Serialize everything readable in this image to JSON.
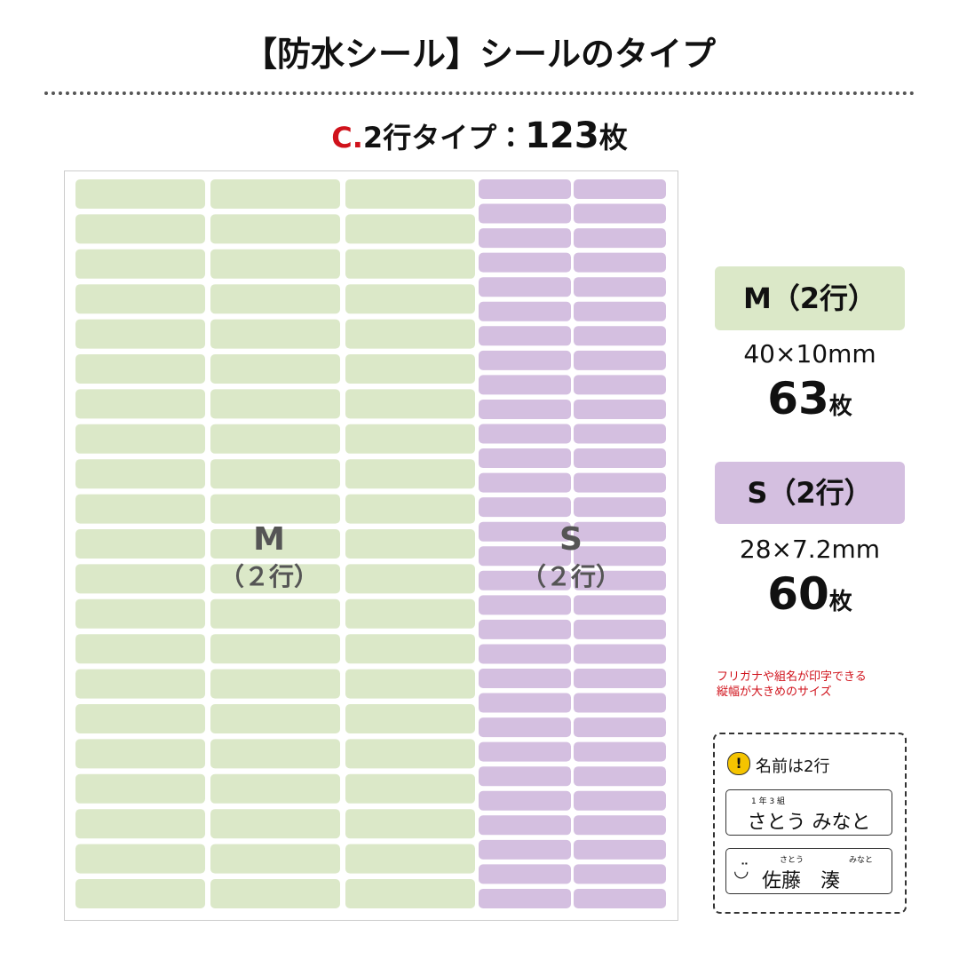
{
  "header": {
    "title": "【防水シール】シールのタイプ"
  },
  "subtitle": {
    "prefix": "C.",
    "type": "2行タイプ：",
    "count": "123",
    "unit": "枚"
  },
  "sheet": {
    "labels": [
      {
        "size": "M",
        "lines": "（２行）"
      },
      {
        "size": "S",
        "lines": "（２行）"
      }
    ]
  },
  "sizes": [
    {
      "name": "M（2行）",
      "dimensions": "40×10mm",
      "count": "63",
      "unit": "枚"
    },
    {
      "name": "S（2行）",
      "dimensions": "28×7.2mm",
      "count": "60",
      "unit": "枚"
    }
  ],
  "note": [
    "フリガナや組名が印字できる",
    "縦幅が大きめのサイズ"
  ],
  "example": {
    "heading": "名前は2行",
    "samples": [
      {
        "furigana": "1 年 3 組",
        "name": "さとう みなと"
      },
      {
        "furigana_left": "さとう",
        "furigana_right": "みなと",
        "name": "佐藤　湊"
      }
    ]
  }
}
